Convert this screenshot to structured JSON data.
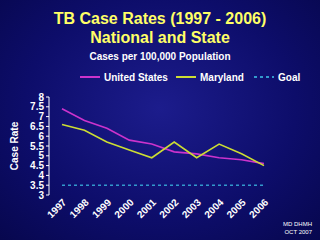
{
  "chart_data": {
    "type": "line",
    "title": [
      "TB Case Rates (1997 - 2006)",
      "National and State"
    ],
    "subtitle": "Cases per 100,000 Population",
    "y_label": "Case Rate",
    "categories": [
      "1997",
      "1998",
      "1999",
      "2000",
      "2001",
      "2002",
      "2003",
      "2004",
      "2005",
      "2006"
    ],
    "series": [
      {
        "name": "United States",
        "color": "#cc33cc",
        "line_style": "solid",
        "values": [
          7.4,
          6.8,
          6.4,
          5.8,
          5.6,
          5.2,
          5.1,
          4.9,
          4.8,
          4.6
        ]
      },
      {
        "name": "Maryland",
        "color": "#ccdd33",
        "line_style": "solid",
        "values": [
          6.6,
          6.3,
          5.7,
          5.3,
          4.9,
          5.7,
          4.9,
          5.6,
          5.1,
          4.5
        ]
      },
      {
        "name": "Goal",
        "color": "#3399cc",
        "line_style": "dashed",
        "values": [
          3.5,
          3.5,
          3.5,
          3.5,
          3.5,
          3.5,
          3.5,
          3.5,
          3.5,
          3.5
        ]
      }
    ],
    "ylim": [
      3,
      8
    ],
    "yticks": [
      3,
      3.5,
      4,
      4.5,
      5,
      5.5,
      6,
      6.5,
      7,
      7.5,
      8
    ],
    "grid": false,
    "legend": "top",
    "annotations": [
      "MD DHMH",
      "OCT 2007"
    ]
  }
}
